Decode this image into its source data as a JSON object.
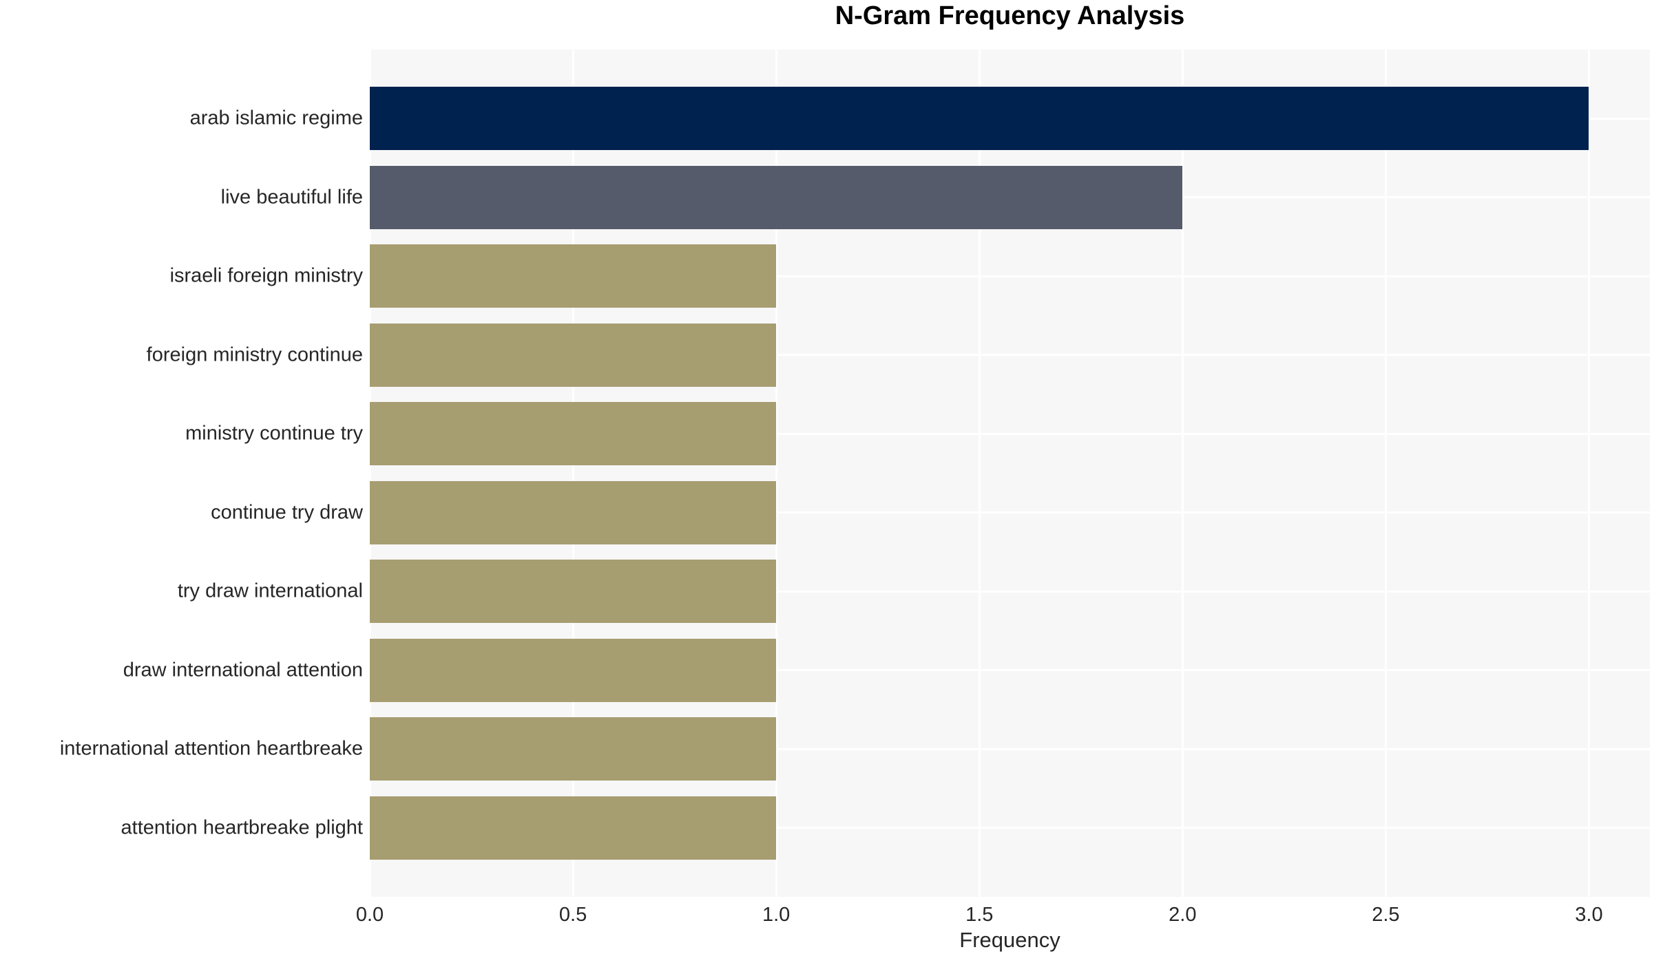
{
  "chart_data": {
    "type": "bar",
    "orientation": "horizontal",
    "title": "N-Gram Frequency Analysis",
    "xlabel": "Frequency",
    "ylabel": "",
    "categories": [
      "arab islamic regime",
      "live beautiful life",
      "israeli foreign ministry",
      "foreign ministry continue",
      "ministry continue try",
      "continue try draw",
      "try draw international",
      "draw international attention",
      "international attention heartbreake",
      "attention heartbreake plight"
    ],
    "values": [
      3,
      2,
      1,
      1,
      1,
      1,
      1,
      1,
      1,
      1
    ],
    "bar_colors": [
      "#00224E",
      "#565B6B",
      "#A69D71",
      "#A69D71",
      "#A69D71",
      "#A69D71",
      "#A69D71",
      "#A69D71",
      "#A69D71",
      "#A69D71"
    ],
    "xlim": [
      0,
      3.15
    ],
    "xticks": [
      0.0,
      0.5,
      1.0,
      1.5,
      2.0,
      2.5,
      3.0
    ],
    "xtick_labels": [
      "0.0",
      "0.5",
      "1.0",
      "1.5",
      "2.0",
      "2.5",
      "3.0"
    ],
    "grid": true,
    "legend": false,
    "colors": {
      "figure_bg": "#FFFFFF",
      "plot_bg": "#F7F7F7",
      "grid": "#FFFFFF",
      "tick_text": "#262626",
      "title_text": "#000000"
    }
  }
}
